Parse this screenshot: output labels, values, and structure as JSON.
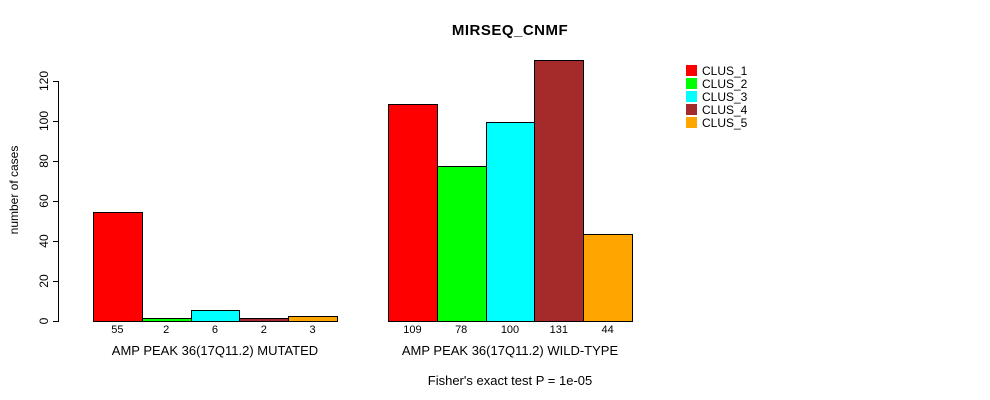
{
  "chart_data": {
    "type": "bar",
    "title": "MIRSEQ_CNMF",
    "ylabel": "number of cases",
    "xlabel": "",
    "yticks": [
      0,
      20,
      40,
      60,
      80,
      100,
      120
    ],
    "ylim": [
      0,
      131
    ],
    "grid": false,
    "legend_position": "right",
    "categories": [
      "AMP PEAK 36(17Q11.2) MUTATED",
      "AMP PEAK 36(17Q11.2) WILD-TYPE"
    ],
    "groups": [
      {
        "label": "AMP PEAK 36(17Q11.2) MUTATED",
        "values": [
          55,
          2,
          6,
          2,
          3
        ]
      },
      {
        "label": "AMP PEAK 36(17Q11.2) WILD-TYPE",
        "values": [
          109,
          78,
          100,
          131,
          44
        ]
      }
    ],
    "series": [
      {
        "name": "CLUS_1",
        "color": "#FF0000",
        "values": [
          55,
          109
        ]
      },
      {
        "name": "CLUS_2",
        "color": "#00FF00",
        "values": [
          2,
          78
        ]
      },
      {
        "name": "CLUS_3",
        "color": "#00FFFF",
        "values": [
          6,
          100
        ]
      },
      {
        "name": "CLUS_4",
        "color": "#A52A2A",
        "values": [
          2,
          131
        ]
      },
      {
        "name": "CLUS_5",
        "color": "#FFA500",
        "values": [
          3,
          44
        ]
      }
    ],
    "annotation": "Fisher's exact test P = 1e-05"
  },
  "legend": {
    "items": [
      {
        "label": "CLUS_1",
        "color": "#FF0000"
      },
      {
        "label": "CLUS_2",
        "color": "#00FF00"
      },
      {
        "label": "CLUS_3",
        "color": "#00FFFF"
      },
      {
        "label": "CLUS_4",
        "color": "#A52A2A"
      },
      {
        "label": "CLUS_5",
        "color": "#FFA500"
      }
    ]
  },
  "colors": {
    "background": "#FFFFFF",
    "axis": "#000000",
    "bar_border": "#000000"
  }
}
